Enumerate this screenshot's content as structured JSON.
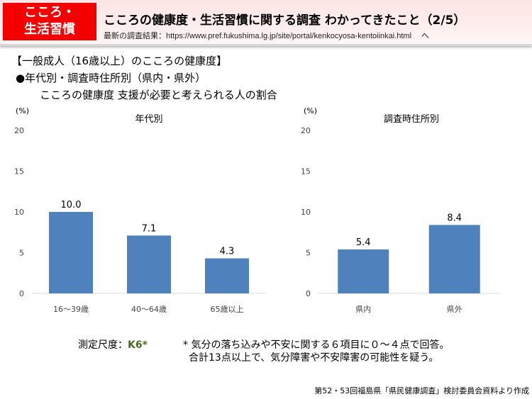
{
  "header": {
    "badge_line1": "こころ・",
    "badge_line2": "生活習慣",
    "title": "こころの健康度・生活習慣に関する調査 わかってきたこと（2/5）",
    "subtitle_label": "最新の調査結果：https://www.pref.fukushima.lg.jp/site/portal/kenkocyosa-kentoiinkai.html",
    "subtitle_arrow": "へ",
    "bg_color": "#fde4e4",
    "badge_color": "#f50000"
  },
  "section": {
    "heading": "【一般成人（16歳以上）のこころの健康度】",
    "bullet": "●年代別・調査時住所別（県内・県外）",
    "caption": "こころの健康度 支援が必要と考えられる人の割合"
  },
  "chart_data": [
    {
      "type": "bar",
      "title": "年代別",
      "ylabel": "(%)",
      "ylim": [
        0,
        20
      ],
      "yticks": [
        "0",
        "5",
        "10",
        "15",
        "20"
      ],
      "categories": [
        "16～39歳",
        "40～64歳",
        "65歳以上"
      ],
      "values": [
        10.0,
        7.1,
        4.3
      ],
      "data_labels": [
        "10.0",
        "7.1",
        "4.3"
      ],
      "color": "#4f81bd",
      "grid": false
    },
    {
      "type": "bar",
      "title": "調査時住所別",
      "ylabel": "(%)",
      "ylim": [
        0,
        20
      ],
      "yticks": [
        "0",
        "5",
        "10",
        "15",
        "20"
      ],
      "categories": [
        "県内",
        "県外"
      ],
      "values": [
        5.4,
        8.4
      ],
      "data_labels": [
        "5.4",
        "8.4"
      ],
      "color": "#4f81bd",
      "grid": false
    }
  ],
  "notes": {
    "scale_label": "測定尺度：",
    "scale_value": "K6*",
    "line1": "* 気分の落ち込みや不安に関する６項目に０～４点で回答。",
    "line2": "合計13点以上で、気分障害や不安障害の可能性を疑う。",
    "k6_color": "#4a6b1f"
  },
  "source": "第52・53回福島県「県民健康調査」検討委員会資料より作成"
}
